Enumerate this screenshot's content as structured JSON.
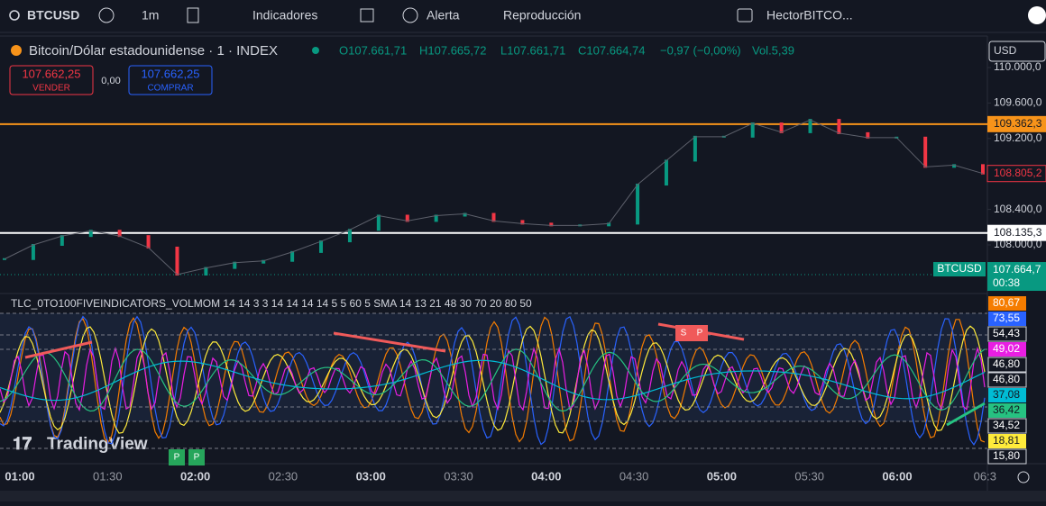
{
  "toolbar": {
    "symbol": "BTCUSD",
    "interval": "1m",
    "indicators": "Indicadores",
    "alert": "Alerta",
    "replay": "Reproducción",
    "layout": "HectorBITCO..."
  },
  "legend": {
    "name": "Bitcoin/Dólar estadounidense · 1 · INDEX",
    "open": "O107.661,71",
    "high": "H107.665,72",
    "low": "L107.661,71",
    "close": "C107.664,74",
    "change": "−0,97 (−0,00%)",
    "volume": "Vol.5,39"
  },
  "trade": {
    "sell_price": "107.662,25",
    "sell": "VENDER",
    "spread": "0,00",
    "buy_price": "107.662,25",
    "buy": "COMPRAR"
  },
  "price_axis": {
    "currency": "USD",
    "ticks": [
      {
        "value": 110000,
        "label": "110.000,0"
      },
      {
        "value": 109600,
        "label": "109.600,0"
      },
      {
        "value": 109200,
        "label": "109.200,0"
      },
      {
        "value": 108400,
        "label": "108.400,0"
      },
      {
        "value": 108000,
        "label": "108.000,0"
      }
    ],
    "levels": [
      {
        "value": 109362,
        "label": "109.362,3",
        "color": "#f7931a"
      },
      {
        "value": 108135,
        "label": "108.135,3",
        "color": "#ffffff"
      }
    ],
    "high_label": {
      "value": 108805,
      "label": "108.805,2"
    },
    "last": {
      "symbol": "BTCUSD",
      "value": 107664.7,
      "label": "107.664,7",
      "countdown": "00:38"
    }
  },
  "price_closes": [
    107840,
    108000,
    108100,
    108160,
    108100,
    107970,
    107665,
    107740,
    107800,
    107820,
    107920,
    108040,
    108170,
    108330,
    108270,
    108330,
    108350,
    108270,
    108240,
    108220,
    108220,
    108240,
    108680,
    108950,
    109220,
    109220,
    109370,
    109270,
    109410,
    109260,
    109210,
    109210,
    108880,
    108900,
    108805
  ],
  "indicator": {
    "title": "TLC_0TO100FIVEINDICATORS_VOLMOM 14 14 3 3 14 14 14 14 5 5 60 5 SMA 14 13 21 48 30 70 20 80 50",
    "values": [
      {
        "label": "80,67",
        "color": "#f57c00"
      },
      {
        "label": "73,55",
        "color": "#2962ff"
      },
      {
        "label": "54,43",
        "color": "#131722"
      },
      {
        "label": "49,02",
        "color": "#e91ee3"
      },
      {
        "label": "46,80",
        "color": "#131722"
      },
      {
        "label": "46,80",
        "color": "#131722"
      },
      {
        "label": "37,08",
        "color": "#00bcd4"
      },
      {
        "label": "36,42",
        "color": "#26c281"
      },
      {
        "label": "34,52",
        "color": "#131722"
      },
      {
        "label": "18,81",
        "color": "#ffeb3b"
      },
      {
        "label": "15,80",
        "color": "#131722"
      }
    ],
    "signals": [
      "S",
      "P",
      "P",
      "P"
    ]
  },
  "time_axis": [
    "01:00",
    "01:30",
    "02:00",
    "02:30",
    "03:00",
    "03:30",
    "04:00",
    "04:30",
    "05:00",
    "05:30",
    "06:00",
    "06:3"
  ],
  "brand": "TradingView"
}
